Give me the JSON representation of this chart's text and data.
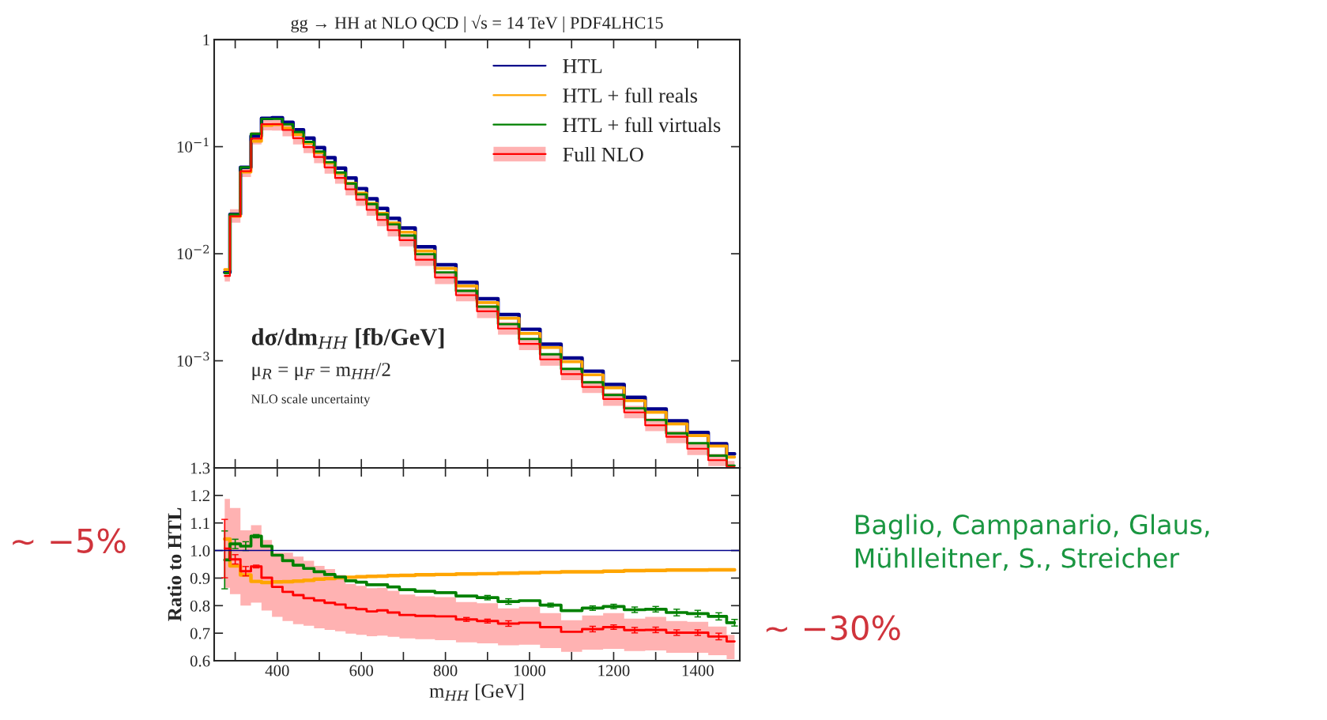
{
  "chart_data": [
    {
      "type": "step",
      "title": "gg → HH at NLO QCD | √s = 14 TeV | PDF4LHC15",
      "log": "y",
      "legend": "top right",
      "tick_labels": "y",
      "xlim": [
        250,
        1500
      ],
      "xticks": [
        {
          "value": 300,
          "label": null
        },
        400,
        {
          "value": 500,
          "label": null
        },
        600,
        {
          "value": 700,
          "label": null
        },
        800,
        {
          "value": 900,
          "label": null
        },
        1000,
        {
          "value": 1100,
          "label": null
        },
        1200,
        {
          "value": 1300,
          "label": null
        },
        1400,
        {
          "value": 1500,
          "label": null
        }
      ],
      "ylim": [
        0.0001,
        1
      ],
      "yticks": [
        {
          "value": 0.001,
          "label": "10$^{−3}$"
        },
        {
          "value": 0.01,
          "label": "10$^{−2}$"
        },
        {
          "value": 0.1,
          "label": "10$^{−1}$"
        },
        1
      ],
      "annotations": [
        "dσ/dm$_{HH}$ [fb/GeV]",
        "μ$_{R}$ = μ$_{F}$ = m$_{HH}$/2",
        "NLO scale uncertainty"
      ],
      "x": [
        275,
        300,
        325,
        350,
        375,
        400,
        425,
        450,
        475,
        500,
        525,
        550,
        575,
        600,
        625,
        650,
        675,
        706.25,
        750,
        800,
        850,
        900,
        950,
        1000,
        1050,
        1100,
        1150,
        1200,
        1250,
        1300,
        1350,
        1400,
        1450,
        1487.5
      ],
      "series": [
        {
          "name": "HTL",
          "color": "#00008b",
          "values": [
            0.0067,
            0.0233,
            0.064,
            0.126,
            0.184,
            0.186,
            0.169,
            0.144,
            0.12,
            0.098,
            0.079,
            0.063,
            0.051,
            0.0406,
            0.0326,
            0.0265,
            0.0214,
            0.0174,
            0.0116,
            0.0079,
            0.0054,
            0.0038,
            0.0027,
            0.00197,
            0.00143,
            0.00106,
            0.0008,
            0.0006,
            0.000456,
            0.000354,
            0.000275,
            0.000214,
            0.000168,
            0.000135
          ]
        },
        {
          "name": "HTL + full reals",
          "color": "#ffa500",
          "values": [
            0.0071,
            0.0224,
            0.058,
            0.1125,
            0.158,
            0.161,
            0.149,
            0.13,
            0.108,
            0.088,
            0.0705,
            0.0563,
            0.0455,
            0.0369,
            0.0295,
            0.0239,
            0.0194,
            0.0159,
            0.0106,
            0.0073,
            0.005,
            0.0035,
            0.0025,
            0.0018,
            0.00133,
            0.00098,
            0.00074,
            0.00056,
            0.000424,
            0.000331,
            0.000257,
            0.0002,
            0.00016,
            0.000126
          ]
        },
        {
          "name": "HTL + full virtuals",
          "color": "#008000",
          "values": [
            0.0066,
            0.0233,
            0.064,
            0.132,
            0.182,
            0.182,
            0.162,
            0.137,
            0.111,
            0.09,
            0.0717,
            0.0573,
            0.0452,
            0.0359,
            0.0291,
            0.0233,
            0.0188,
            0.0148,
            0.0099,
            0.0067,
            0.0045,
            0.0032,
            0.0022,
            0.0016,
            0.00115,
            0.00084,
            0.00063,
            0.00048,
            0.00036,
            0.00028,
            0.00021,
            0.00017,
            0.00013,
            0.000105
          ]
        },
        {
          "name": "Full NLO",
          "color": "#ff0000",
          "values": [
            0.0062,
            0.0224,
            0.059,
            0.119,
            0.162,
            0.162,
            0.143,
            0.12,
            0.099,
            0.08,
            0.064,
            0.051,
            0.04,
            0.032,
            0.0257,
            0.0207,
            0.0166,
            0.0134,
            0.0088,
            0.006,
            0.0041,
            0.0029,
            0.002,
            0.00144,
            0.00103,
            0.00075,
            0.00057,
            0.00044,
            0.00033,
            0.00025,
            0.000195,
            0.000151,
            0.000118,
            0.000102
          ],
          "upper": [
            0.0071,
            0.026,
            0.066,
            0.137,
            0.186,
            0.186,
            0.163,
            0.137,
            0.112,
            0.09,
            0.072,
            0.058,
            0.046,
            0.036,
            0.029,
            0.0234,
            0.0188,
            0.0152,
            0.01,
            0.0068,
            0.0047,
            0.0033,
            0.0023,
            0.00163,
            0.00117,
            0.00086,
            0.00065,
            0.0005,
            0.00038,
            0.00029,
            0.00022,
            0.000172,
            0.000135,
            0.000116
          ],
          "lower": [
            0.0055,
            0.0195,
            0.052,
            0.105,
            0.142,
            0.141,
            0.125,
            0.105,
            0.087,
            0.07,
            0.056,
            0.045,
            0.035,
            0.028,
            0.0226,
            0.0181,
            0.0145,
            0.0117,
            0.0077,
            0.0052,
            0.0036,
            0.0025,
            0.00175,
            0.00126,
            0.0009,
            0.00066,
            0.0005,
            0.00038,
            0.00029,
            0.00022,
            0.00017,
            0.000132,
            0.000104,
            0.0001
          ]
        }
      ]
    },
    {
      "type": "step",
      "xlabel": "m$_{HH}$ [GeV]",
      "ylabel": "Ratio to HTL",
      "xlim": [
        250,
        1500
      ],
      "xticks": [
        {
          "value": 300,
          "label": null
        },
        400,
        {
          "value": 500,
          "label": null
        },
        600,
        {
          "value": 700,
          "label": null
        },
        800,
        {
          "value": 900,
          "label": null
        },
        1000,
        {
          "value": 1100,
          "label": null
        },
        1200,
        {
          "value": 1300,
          "label": null
        },
        1400,
        {
          "value": 1500,
          "label": null
        }
      ],
      "ylim": [
        0.6,
        1.3
      ],
      "yticks": [
        0.6,
        0.7,
        0.8,
        0.9,
        {
          "value": 1,
          "label": "1.0"
        },
        1.1,
        1.2,
        1.3
      ],
      "ref_lines": [
        {
          "axis": "y",
          "value": 1.0,
          "color": "#00008b"
        }
      ],
      "annotations": [
        "∼ −5%",
        "∼ −30%",
        "Baglio, Campanario, Glaus,\nMühlleitner, S., Streicher"
      ],
      "x": [
        275,
        300,
        325,
        350,
        375,
        400,
        425,
        450,
        475,
        500,
        525,
        550,
        575,
        600,
        625,
        650,
        675,
        706.25,
        750,
        800,
        850,
        900,
        950,
        1000,
        1050,
        1100,
        1150,
        1200,
        1250,
        1300,
        1350,
        1400,
        1450,
        1487.5
      ],
      "series": [
        {
          "color": "#ffa500",
          "values": [
            1.042,
            0.944,
            0.911,
            0.888,
            0.884,
            0.886,
            0.887,
            0.889,
            0.892,
            0.896,
            0.898,
            0.901,
            0.903,
            0.905,
            0.906,
            0.907,
            0.909,
            0.91,
            0.912,
            0.913,
            0.915,
            0.916,
            0.918,
            0.919,
            0.921,
            0.923,
            0.923,
            0.925,
            0.927,
            0.928,
            0.929,
            0.929,
            0.93,
            0.93
          ]
        },
        {
          "color": "#008000",
          "values": [
            0.966,
            1.024,
            1.016,
            1.052,
            1.016,
            0.983,
            0.963,
            0.947,
            0.935,
            0.923,
            0.913,
            0.904,
            0.89,
            0.885,
            0.876,
            0.876,
            0.868,
            0.858,
            0.852,
            0.847,
            0.835,
            0.829,
            0.815,
            0.818,
            0.802,
            0.782,
            0.791,
            0.797,
            0.785,
            0.787,
            0.775,
            0.771,
            0.761,
            0.738
          ],
          "errors": [
            0.105,
            0.017,
            0.016,
            0.006,
            null,
            null,
            null,
            null,
            null,
            null,
            null,
            null,
            null,
            null,
            null,
            null,
            null,
            null,
            null,
            null,
            null,
            0.008,
            0.01,
            null,
            0.007,
            null,
            0.008,
            0.008,
            0.01,
            0.01,
            0.012,
            0.012,
            0.013,
            0.012
          ]
        },
        {
          "color": "#ff0000",
          "values": [
            1.007,
            0.968,
            0.925,
            0.942,
            0.901,
            0.868,
            0.85,
            0.838,
            0.827,
            0.819,
            0.81,
            0.804,
            0.792,
            0.787,
            0.779,
            0.783,
            0.775,
            0.766,
            0.763,
            0.761,
            0.75,
            0.744,
            0.735,
            0.738,
            0.722,
            0.705,
            0.715,
            0.722,
            0.711,
            0.712,
            0.702,
            0.702,
            0.688,
            0.67
          ],
          "errors": [
            0.106,
            0.017,
            0.017,
            0.005,
            null,
            null,
            null,
            null,
            null,
            null,
            null,
            null,
            null,
            null,
            null,
            null,
            null,
            null,
            null,
            null,
            0.007,
            0.007,
            0.01,
            null,
            null,
            null,
            0.01,
            0.008,
            0.01,
            0.01,
            0.01,
            0.01,
            0.012,
            null
          ],
          "upper": [
            1.187,
            1.154,
            1.073,
            1.092,
            1.038,
            0.992,
            0.992,
            0.978,
            0.963,
            0.944,
            0.933,
            0.911,
            0.879,
            0.872,
            0.863,
            0.865,
            0.854,
            0.84,
            0.834,
            0.831,
            0.813,
            0.809,
            0.79,
            0.796,
            0.773,
            0.747,
            0.764,
            0.773,
            0.753,
            0.759,
            0.744,
            0.741,
            0.724,
            0.694
          ],
          "lower": [
            0.865,
            0.842,
            0.8,
            0.811,
            0.782,
            0.759,
            0.744,
            0.733,
            0.727,
            0.718,
            0.712,
            0.707,
            0.698,
            0.694,
            0.689,
            0.691,
            0.687,
            0.681,
            0.678,
            0.675,
            0.667,
            0.663,
            0.656,
            0.658,
            0.646,
            0.632,
            0.64,
            0.643,
            0.635,
            0.637,
            0.629,
            0.629,
            0.62,
            0.606
          ]
        }
      ]
    }
  ]
}
